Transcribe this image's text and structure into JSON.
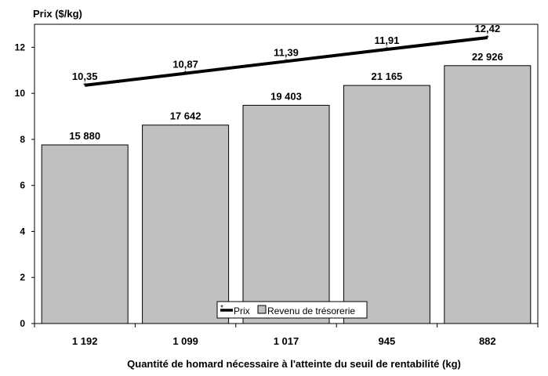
{
  "chart_data": {
    "type": "bar",
    "title": "",
    "ylabel": "Prix ($/kg)",
    "xlabel": "Quantité de homard nécessaire à l'atteinte du seuil de rentabilité (kg)",
    "categories": [
      "1 192",
      "1 099",
      "1 017",
      "945",
      "882"
    ],
    "ylim": [
      0,
      13
    ],
    "yticks": [
      0,
      2,
      4,
      6,
      8,
      10,
      12
    ],
    "series": [
      {
        "name": "Revenu de trésorerie",
        "kind": "bar",
        "values": [
          15880,
          17642,
          19403,
          21165,
          22926
        ],
        "labels": [
          "15 880",
          "17 642",
          "19 403",
          "21 165",
          "22 926"
        ],
        "color": "#c0c0c0"
      },
      {
        "name": "Prix",
        "kind": "line",
        "values": [
          10.35,
          10.87,
          11.39,
          11.91,
          12.42
        ],
        "labels": [
          "10,35",
          "10,87",
          "11,39",
          "11,91",
          "12,42"
        ],
        "color": "#000000"
      }
    ],
    "legend": {
      "position": "bottom-center",
      "entries": [
        "Prix",
        "Revenu de trésorerie"
      ]
    },
    "grid": false
  }
}
